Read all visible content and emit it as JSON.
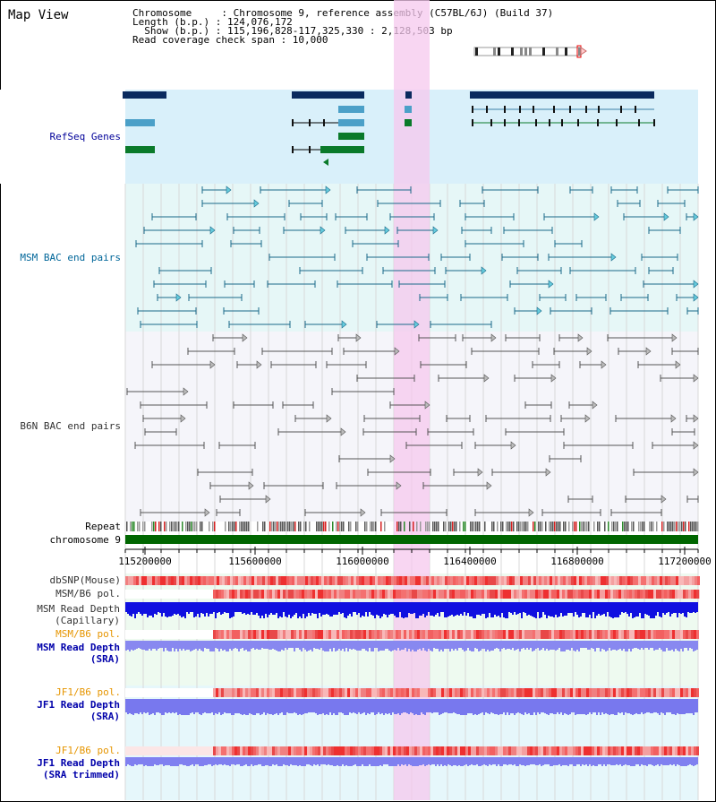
{
  "header": {
    "title": "Map View",
    "line1": "Chromosome     : Chromosome 9, reference assembly (C57BL/6J) (Build 37)",
    "line2": "Length (b.p.) : 124,076,172",
    "line3": "  Show (b.p.) : 115,196,828-117,325,330 : 2,128,503 bp",
    "line4": "Read coverage check span : 10,000"
  },
  "tracks": {
    "refseq": "RefSeq Genes",
    "msm_bac": "MSM BAC end pairs",
    "b6n_bac": "B6N BAC end pairs",
    "repeat": "Repeat",
    "chromosome": "chromosome 9",
    "dbsnp": "dbSNP(Mouse)",
    "msm_b6_pol": "MSM/B6 pol.",
    "msm_depth_cap": "MSM Read Depth\n(Capillary)",
    "msm_b6_pol2": "MSM/B6 pol.",
    "msm_depth_sra": "MSM Read Depth\n(SRA)",
    "jf1_b6_pol": "JF1/B6 pol.",
    "jf1_depth_sra": "JF1 Read Depth\n(SRA)",
    "jf1_b6_pol2": "JF1/B6 pol.",
    "jf1_depth_trim": "JF1 Read Depth\n(SRA trimmed)"
  },
  "axis": {
    "ticks": [
      "115200000",
      "115600000",
      "116000000",
      "116400000",
      "116800000",
      "117200000"
    ]
  },
  "colors": {
    "refseq_label": "#000099",
    "msm_label": "#006699",
    "b6n_label": "#333333",
    "orange_label": "#e69500",
    "blue_label": "#0000aa",
    "highlight": "#f5c8ee",
    "chromosome_bar": "#006600"
  }
}
